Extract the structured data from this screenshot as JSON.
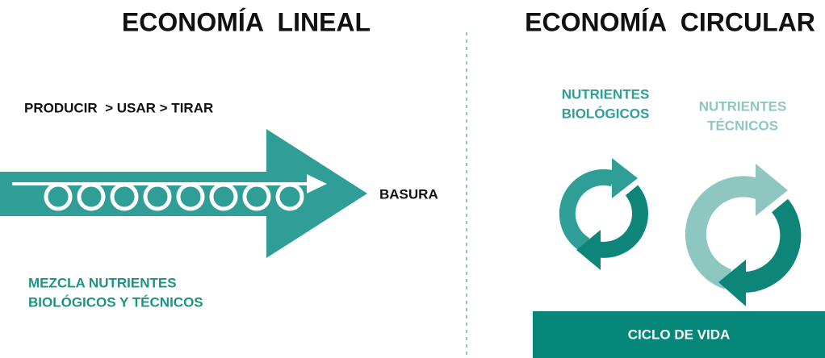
{
  "left": {
    "title": "ECONOMÍA  LINEAL",
    "process": "PRODUCIR  > USAR > TIRAR",
    "output": "BASURA",
    "note": [
      "MEZCLA NUTRIENTES",
      "BIOLÓGICOS Y TÉCNICOS"
    ]
  },
  "right": {
    "title": "ECONOMÍA  CIRCULAR",
    "biological": [
      "NUTRIENTES",
      "BIOLÓGICOS"
    ],
    "technical": [
      "NUTRIENTES",
      "TÉCNICOS"
    ],
    "base": "CICLO DE VIDA"
  }
}
